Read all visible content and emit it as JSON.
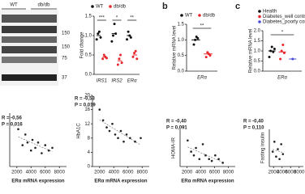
{
  "panel_labels": [
    "b",
    "c"
  ],
  "blot": {
    "lanes": [
      "WT",
      "db/db"
    ],
    "markers": [
      "150",
      "150",
      "75",
      "37"
    ]
  },
  "chart_data": [
    {
      "type": "dotplot",
      "y_label": "Fold change",
      "categories": [
        "IRS1",
        "IRS2",
        "ERα"
      ],
      "sig": [
        "***",
        "*",
        "**"
      ],
      "ylim": [
        0,
        1.5
      ],
      "yticks": [
        {
          "value": 0,
          "label": "0.0"
        },
        {
          "value": 0.5,
          "label": "0.5"
        },
        {
          "value": 1,
          "label": "1.0"
        },
        {
          "value": 1.5,
          "label": "1.5"
        }
      ],
      "series": [
        {
          "name": "WT",
          "color": "#111111",
          "values": [
            1.0,
            1.05,
            1.0
          ],
          "points": [
            [
              0.9,
              1.05,
              1.1,
              0.95
            ],
            [
              0.85,
              1.0,
              1.3,
              1.05
            ],
            [
              0.9,
              1.1,
              1.0,
              0.95
            ]
          ]
        },
        {
          "name": "db/db",
          "color": "#e8262b",
          "values": [
            0.45,
            0.35,
            0.5
          ],
          "points": [
            [
              0.4,
              0.5,
              0.45,
              0.42
            ],
            [
              0.25,
              0.4,
              0.5,
              0.3
            ],
            [
              0.45,
              0.55,
              0.6,
              0.4
            ]
          ]
        }
      ]
    },
    {
      "type": "dotplot",
      "y_label": "Relative mRNA level",
      "categories": [
        "ERα"
      ],
      "sig": [
        "**"
      ],
      "ylim": [
        0,
        1.5
      ],
      "yticks": [
        {
          "value": 0,
          "label": "0.0"
        },
        {
          "value": 0.5,
          "label": "0.5"
        },
        {
          "value": 1,
          "label": "1.0"
        },
        {
          "value": 1.5,
          "label": "1.5"
        }
      ],
      "series": [
        {
          "name": "WT",
          "color": "#111111",
          "values": [
            1.0
          ],
          "points": [
            [
              0.85,
              1.0,
              1.1,
              1.05
            ]
          ]
        },
        {
          "name": "db/db",
          "color": "#e8262b",
          "values": [
            0.55
          ],
          "points": [
            [
              0.45,
              0.6,
              0.55,
              0.5
            ]
          ]
        }
      ]
    },
    {
      "type": "dotplot",
      "y_label": "Relative mRNA level",
      "categories": [
        "ERα"
      ],
      "sig": [
        "*"
      ],
      "ylim": [
        0,
        2
      ],
      "yticks": [
        {
          "value": 0,
          "label": "0.0"
        },
        {
          "value": 0.5,
          "label": "0.5"
        },
        {
          "value": 1,
          "label": "1.0"
        },
        {
          "value": 1.5,
          "label": "1.5"
        },
        {
          "value": 2,
          "label": "2.0"
        }
      ],
      "series": [
        {
          "name": "Health",
          "color": "#111111",
          "values": [
            1.0
          ],
          "points": [
            [
              0.7,
              1.0,
              1.2,
              0.95,
              1.1
            ]
          ]
        },
        {
          "name": "Diabetes_well control",
          "color": "#e8262b",
          "values": [
            0.95
          ],
          "points": [
            [
              0.6,
              1.0,
              1.3,
              0.9
            ]
          ]
        },
        {
          "name": "Diabetes_poorly control",
          "color": "#4a4ad8",
          "values": [
            0.6
          ],
          "points": [
            [
              0.6
            ]
          ]
        }
      ]
    },
    {
      "type": "scatter",
      "annotations": [
        "R = -0,56",
        "P = 0,016"
      ],
      "x_label": "ERα mRNA expression",
      "color": "#222222",
      "xlim": [
        1000,
        9000
      ],
      "xticks": [
        2000,
        4000,
        6000,
        8000
      ],
      "ylim": [
        0,
        20
      ],
      "x": [
        2200,
        2800,
        3200,
        3500,
        4000,
        4200,
        4600,
        5000,
        5500,
        6000,
        6500,
        7000
      ],
      "y": [
        14,
        8,
        12,
        9,
        6,
        10,
        7,
        9,
        5,
        8,
        6,
        7
      ]
    },
    {
      "type": "scatter",
      "annotations": [
        "R = -0,53",
        "P = 0,019"
      ],
      "x_label": "ERα mRNA expression",
      "y_label": "HbA1C",
      "color": "#222222",
      "xlim": [
        1000,
        9000
      ],
      "xticks": [
        2000,
        4000,
        6000,
        8000
      ],
      "ylim": [
        0,
        20
      ],
      "yticks": [
        0,
        4,
        8,
        12,
        16,
        20
      ],
      "x": [
        2000,
        2500,
        3000,
        3400,
        3800,
        4200,
        4600,
        5000,
        5400,
        5800,
        6300,
        7000,
        7800
      ],
      "y": [
        16,
        13,
        11,
        10,
        12,
        9,
        8,
        10,
        7,
        9,
        8,
        7,
        8
      ]
    },
    {
      "type": "scatter",
      "annotations": [
        "R = -0,40",
        "P = 0,091"
      ],
      "x_label": "ERα mRNA expression",
      "y_label": "HOMA-IR",
      "color": "#222222",
      "xlim": [
        1000,
        9000
      ],
      "xticks": [
        2000,
        4000,
        6000,
        8000
      ],
      "ylim": [
        0,
        10
      ],
      "x": [
        2100,
        2600,
        3000,
        3300,
        3800,
        4300,
        4700,
        5200,
        5600,
        6100,
        6600,
        7200
      ],
      "y": [
        7,
        4,
        3,
        5,
        2,
        6,
        3,
        2,
        1.5,
        3,
        2,
        1
      ]
    },
    {
      "type": "scatter",
      "annotations": [
        "R = -0,40",
        "P = 0,110"
      ],
      "y_label": "Fasting insulin",
      "color": "#222222",
      "xlim": [
        1000,
        9000
      ],
      "xticks": [
        2000,
        4000,
        6000,
        8000
      ],
      "ylim": [
        0,
        30
      ],
      "x": [
        1800,
        2200,
        2600,
        3000,
        3400,
        3800,
        4200
      ],
      "y": [
        12,
        20,
        8,
        14,
        6,
        18,
        10
      ]
    }
  ]
}
